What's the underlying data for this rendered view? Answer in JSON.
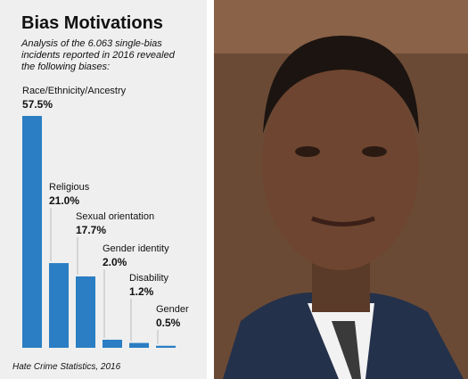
{
  "chart_data": {
    "type": "bar",
    "title": "Bias Motivations",
    "subtitle": [
      "Analysis of the 6.063 single-bias",
      "incidents reported in 2016 revealed",
      "the following biases:"
    ],
    "categories": [
      "Race/Ethnicity/Ancestry",
      "Religious",
      "Sexual orientation",
      "Gender identity",
      "Disability",
      "Gender"
    ],
    "values": [
      57.5,
      21.0,
      17.7,
      2.0,
      1.2,
      0.5
    ],
    "value_labels": [
      "57.5%",
      "21.0%",
      "17.7%",
      "2.0%",
      "1.2%",
      "0.5%"
    ],
    "color": "#2b7ec3",
    "source": "Hate Crime Statistics, 2016"
  }
}
